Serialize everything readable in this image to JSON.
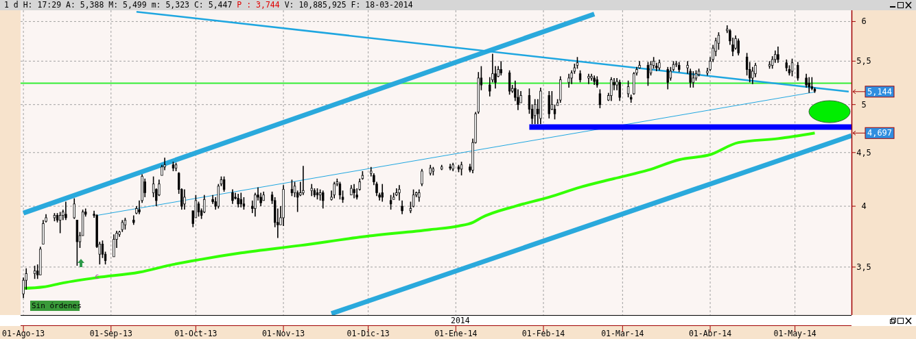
{
  "chart_data": {
    "type": "candlestick",
    "title": "1 d H: 17:29 A: 5,388 M: 5,499 m: 5,323 C: 5,447",
    "subtitle": "P : 3,744",
    "annotations": [
      "V: 10,885,925 F: 18-03-2014",
      "Sin órdenes",
      "2014",
      {
        "text": "5,144",
        "x": "2014-05-21",
        "y": 5.144
      },
      {
        "text": "4,697",
        "x": "2014-05-21",
        "y": 4.697
      },
      {
        "text": "c",
        "x": "2013-08-27",
        "y": 3.43
      }
    ],
    "x": [
      "2013-08-01",
      "2013-08-02",
      "2013-08-05",
      "2013-08-06",
      "2013-08-07",
      "2013-08-08",
      "2013-08-09",
      "2013-08-12",
      "2013-08-13",
      "2013-08-14",
      "2013-08-15",
      "2013-08-16",
      "2013-08-19",
      "2013-08-20",
      "2013-08-21",
      "2013-08-22",
      "2013-08-23",
      "2013-08-26",
      "2013-08-27",
      "2013-08-28",
      "2013-08-29",
      "2013-08-30",
      "2013-09-02",
      "2013-09-03",
      "2013-09-04",
      "2013-09-05",
      "2013-09-06",
      "2013-09-09",
      "2013-09-10",
      "2013-09-11",
      "2013-09-12",
      "2013-09-13",
      "2013-09-16",
      "2013-09-17",
      "2013-09-18",
      "2013-09-19",
      "2013-09-20",
      "2013-09-23",
      "2013-09-24",
      "2013-09-25",
      "2013-09-26",
      "2013-09-27",
      "2013-09-30",
      "2013-10-01",
      "2013-10-02",
      "2013-10-03",
      "2013-10-04",
      "2013-10-07",
      "2013-10-08",
      "2013-10-09",
      "2013-10-10",
      "2013-10-11",
      "2013-10-14",
      "2013-10-15",
      "2013-10-16",
      "2013-10-17",
      "2013-10-18",
      "2013-10-21",
      "2013-10-22",
      "2013-10-23",
      "2013-10-24",
      "2013-10-25",
      "2013-10-28",
      "2013-10-29",
      "2013-10-30",
      "2013-10-31",
      "2013-11-01",
      "2013-11-04",
      "2013-11-05",
      "2013-11-06",
      "2013-11-07",
      "2013-11-08",
      "2013-11-11",
      "2013-11-12",
      "2013-11-13",
      "2013-11-14",
      "2013-11-15",
      "2013-11-18",
      "2013-11-19",
      "2013-11-20",
      "2013-11-21",
      "2013-11-22",
      "2013-11-25",
      "2013-11-26",
      "2013-11-27",
      "2013-11-28",
      "2013-11-29",
      "2013-12-02",
      "2013-12-03",
      "2013-12-04",
      "2013-12-05",
      "2013-12-06",
      "2013-12-09",
      "2013-12-10",
      "2013-12-11",
      "2013-12-12",
      "2013-12-13",
      "2013-12-16",
      "2013-12-17",
      "2013-12-18",
      "2013-12-19",
      "2013-12-20",
      "2013-12-23",
      "2013-12-24",
      "2013-12-27",
      "2013-12-30",
      "2013-12-31",
      "2014-01-02",
      "2014-01-03",
      "2014-01-06",
      "2014-01-07",
      "2014-01-08",
      "2014-01-09",
      "2014-01-10",
      "2014-01-13",
      "2014-01-14",
      "2014-01-15",
      "2014-01-16",
      "2014-01-17",
      "2014-01-20",
      "2014-01-21",
      "2014-01-22",
      "2014-01-23",
      "2014-01-24",
      "2014-01-27",
      "2014-01-28",
      "2014-01-29",
      "2014-01-30",
      "2014-01-31",
      "2014-02-03",
      "2014-02-04",
      "2014-02-05",
      "2014-02-06",
      "2014-02-07",
      "2014-02-10",
      "2014-02-11",
      "2014-02-12",
      "2014-02-13",
      "2014-02-14",
      "2014-02-17",
      "2014-02-18",
      "2014-02-19",
      "2014-02-20",
      "2014-02-21",
      "2014-02-24",
      "2014-02-25",
      "2014-02-26",
      "2014-02-27",
      "2014-02-28",
      "2014-03-03",
      "2014-03-04",
      "2014-03-05",
      "2014-03-06",
      "2014-03-07",
      "2014-03-10",
      "2014-03-11",
      "2014-03-12",
      "2014-03-13",
      "2014-03-14",
      "2014-03-17",
      "2014-03-18",
      "2014-03-19",
      "2014-03-20",
      "2014-03-21",
      "2014-03-24",
      "2014-03-25",
      "2014-03-26",
      "2014-03-27",
      "2014-03-28",
      "2014-03-31",
      "2014-04-01",
      "2014-04-02",
      "2014-04-03",
      "2014-04-04",
      "2014-04-07",
      "2014-04-08",
      "2014-04-09",
      "2014-04-10",
      "2014-04-11",
      "2014-04-14",
      "2014-04-15",
      "2014-04-16",
      "2014-04-17",
      "2014-04-22",
      "2014-04-23",
      "2014-04-24",
      "2014-04-25",
      "2014-04-28",
      "2014-04-29",
      "2014-04-30",
      "2014-05-02",
      "2014-05-05",
      "2014-05-06",
      "2014-05-07",
      "2014-05-08"
    ],
    "ohlc": [
      [
        3.3,
        3.42,
        3.27,
        3.4
      ],
      [
        3.4,
        3.49,
        3.33,
        3.45
      ],
      [
        3.45,
        3.51,
        3.41,
        3.47
      ],
      [
        3.47,
        3.52,
        3.41,
        3.44
      ],
      [
        3.44,
        3.66,
        3.44,
        3.64
      ],
      [
        3.68,
        3.88,
        3.68,
        3.85
      ],
      [
        3.87,
        3.93,
        3.86,
        3.9
      ],
      [
        3.9,
        3.94,
        3.87,
        3.92
      ],
      [
        3.92,
        3.94,
        3.86,
        3.88
      ],
      [
        3.88,
        3.95,
        3.77,
        3.92
      ],
      [
        3.92,
        3.97,
        3.88,
        3.95
      ],
      [
        3.93,
        4.04,
        3.88,
        3.9
      ],
      [
        3.9,
        4.07,
        3.89,
        4.02
      ],
      [
        3.88,
        3.88,
        3.51,
        3.7
      ],
      [
        3.7,
        3.78,
        3.65,
        3.75
      ],
      [
        3.75,
        3.97,
        3.75,
        3.95
      ],
      [
        3.95,
        3.98,
        3.91,
        3.93
      ],
      [
        3.93,
        3.96,
        3.9,
        3.92
      ],
      [
        3.92,
        3.93,
        3.65,
        3.66
      ],
      [
        3.6,
        3.7,
        3.52,
        3.68
      ],
      [
        3.68,
        3.71,
        3.57,
        3.6
      ],
      [
        3.6,
        3.62,
        3.52,
        3.55
      ],
      [
        3.58,
        3.76,
        3.58,
        3.72
      ],
      [
        3.72,
        3.79,
        3.65,
        3.77
      ],
      [
        3.76,
        3.79,
        3.74,
        3.78
      ],
      [
        3.8,
        3.88,
        3.78,
        3.86
      ],
      [
        3.84,
        3.9,
        3.8,
        3.88
      ],
      [
        3.88,
        3.92,
        3.84,
        3.86
      ],
      [
        3.94,
        4.0,
        3.93,
        3.98
      ],
      [
        3.97,
        4.05,
        3.93,
        3.95
      ],
      [
        4.05,
        4.29,
        4.03,
        4.27
      ],
      [
        4.22,
        4.25,
        4.08,
        4.12
      ],
      [
        4.12,
        4.27,
        4.08,
        4.2
      ],
      [
        4.15,
        4.16,
        4.0,
        4.05
      ],
      [
        4.1,
        4.24,
        4.09,
        4.2
      ],
      [
        4.28,
        4.38,
        4.28,
        4.36
      ],
      [
        4.36,
        4.45,
        4.33,
        4.38
      ],
      [
        4.38,
        4.41,
        4.32,
        4.35
      ],
      [
        4.35,
        4.4,
        4.32,
        4.38
      ],
      [
        4.3,
        4.31,
        4.11,
        4.15
      ],
      [
        4.15,
        4.16,
        3.97,
        4.0
      ],
      [
        4.02,
        4.15,
        3.97,
        4.08
      ],
      [
        3.96,
        3.96,
        3.82,
        3.85
      ],
      [
        3.9,
        4.1,
        3.9,
        4.05
      ],
      [
        4.02,
        4.04,
        3.91,
        3.95
      ],
      [
        3.96,
        3.98,
        3.89,
        3.92
      ],
      [
        3.95,
        4.1,
        3.94,
        4.06
      ],
      [
        4.06,
        4.1,
        4.02,
        4.04
      ],
      [
        4.04,
        4.08,
        3.97,
        4.0
      ],
      [
        4.0,
        4.2,
        3.98,
        4.18
      ],
      [
        4.2,
        4.27,
        4.18,
        4.24
      ],
      [
        4.24,
        4.27,
        4.13,
        4.15
      ],
      [
        4.12,
        4.15,
        4.02,
        4.05
      ],
      [
        4.08,
        4.12,
        4.06,
        4.07
      ],
      [
        4.07,
        4.11,
        3.99,
        4.02
      ],
      [
        4.06,
        4.12,
        3.99,
        4.02
      ],
      [
        4.02,
        4.08,
        3.97,
        4.0
      ],
      [
        4.0,
        4.05,
        3.94,
        3.98
      ],
      [
        3.98,
        4.12,
        3.91,
        4.1
      ],
      [
        4.1,
        4.17,
        4.05,
        4.08
      ],
      [
        4.08,
        4.12,
        4.0,
        4.03
      ],
      [
        4.05,
        4.13,
        4.05,
        4.1
      ],
      [
        4.1,
        4.13,
        4.02,
        4.05
      ],
      [
        4.05,
        4.08,
        3.82,
        3.86
      ],
      [
        3.86,
        3.98,
        3.73,
        3.84
      ],
      [
        3.84,
        4.0,
        3.84,
        3.9
      ],
      [
        3.9,
        4.19,
        3.83,
        4.15
      ],
      [
        4.15,
        4.24,
        4.09,
        4.12
      ],
      [
        4.12,
        4.22,
        4.08,
        4.18
      ],
      [
        4.12,
        4.14,
        3.95,
        4.08
      ],
      [
        4.1,
        4.22,
        4.09,
        4.12
      ],
      [
        4.12,
        4.37,
        4.1,
        4.14
      ],
      [
        4.14,
        4.2,
        4.09,
        4.16
      ],
      [
        4.14,
        4.16,
        4.08,
        4.1
      ],
      [
        4.12,
        4.16,
        4.06,
        4.1
      ],
      [
        4.1,
        4.15,
        4.05,
        4.12
      ],
      [
        4.12,
        4.14,
        3.98,
        4.05
      ],
      [
        4.06,
        4.14,
        4.05,
        4.08
      ],
      [
        4.1,
        4.22,
        4.07,
        4.2
      ],
      [
        4.2,
        4.25,
        4.18,
        4.22
      ],
      [
        4.2,
        4.22,
        4.06,
        4.1
      ],
      [
        4.08,
        4.14,
        4.03,
        4.06
      ],
      [
        4.1,
        4.19,
        4.1,
        4.16
      ],
      [
        4.15,
        4.2,
        4.07,
        4.12
      ],
      [
        4.1,
        4.16,
        4.06,
        4.08
      ],
      [
        4.15,
        4.25,
        4.14,
        4.22
      ],
      [
        4.25,
        4.32,
        4.24,
        4.28
      ],
      [
        4.3,
        4.36,
        4.27,
        4.32
      ],
      [
        4.28,
        4.3,
        4.19,
        4.22
      ],
      [
        4.2,
        4.22,
        4.09,
        4.12
      ],
      [
        4.1,
        4.12,
        4.05,
        4.08
      ],
      [
        4.12,
        4.2,
        4.04,
        4.08
      ],
      [
        4.05,
        4.1,
        3.97,
        4.02
      ],
      [
        4.06,
        4.12,
        4.06,
        4.08
      ],
      [
        4.1,
        4.16,
        4.09,
        4.12
      ],
      [
        4.12,
        4.19,
        4.05,
        4.15
      ],
      [
        4.0,
        4.05,
        3.93,
        3.96
      ],
      [
        3.96,
        4.04,
        3.94,
        3.98
      ],
      [
        4.0,
        4.15,
        3.99,
        4.1
      ],
      [
        4.1,
        4.13,
        4.08,
        4.12
      ],
      [
        4.08,
        4.15,
        4.04,
        4.12
      ],
      [
        4.2,
        4.34,
        4.18,
        4.32
      ],
      [
        4.3,
        4.38,
        4.28,
        4.35
      ],
      [
        4.32,
        4.36,
        4.28,
        4.34
      ],
      [
        4.34,
        4.38,
        4.33,
        4.36
      ],
      [
        4.36,
        4.39,
        4.33,
        4.35
      ],
      [
        4.34,
        4.4,
        4.32,
        4.38
      ],
      [
        4.36,
        4.38,
        4.31,
        4.34
      ],
      [
        4.34,
        4.41,
        4.28,
        4.38
      ],
      [
        4.36,
        4.39,
        4.31,
        4.33
      ],
      [
        4.33,
        4.64,
        4.3,
        4.6
      ],
      [
        4.6,
        4.92,
        4.59,
        4.9
      ],
      [
        4.92,
        5.37,
        4.9,
        5.3
      ],
      [
        5.3,
        5.44,
        5.16,
        5.22
      ],
      [
        5.22,
        5.31,
        5.09,
        5.15
      ],
      [
        5.28,
        5.59,
        5.25,
        5.35
      ],
      [
        5.35,
        5.44,
        5.18,
        5.25
      ],
      [
        5.32,
        5.44,
        5.31,
        5.4
      ],
      [
        5.4,
        5.5,
        5.33,
        5.36
      ],
      [
        5.36,
        5.39,
        5.11,
        5.15
      ],
      [
        5.15,
        5.22,
        5.13,
        5.18
      ],
      [
        5.18,
        5.27,
        5.04,
        5.08
      ],
      [
        5.08,
        5.17,
        4.94,
        5.0
      ],
      [
        5.02,
        5.15,
        5.02,
        5.1
      ],
      [
        5.1,
        5.18,
        4.9,
        4.95
      ],
      [
        4.95,
        5.0,
        4.79,
        4.85
      ],
      [
        4.88,
        5.06,
        4.79,
        5.0
      ],
      [
        4.95,
        5.06,
        4.79,
        4.9
      ],
      [
        4.85,
        5.19,
        4.79,
        5.15
      ],
      [
        5.1,
        5.15,
        4.85,
        4.9
      ],
      [
        4.95,
        5.15,
        4.94,
        5.0
      ],
      [
        4.95,
        5.0,
        4.84,
        4.9
      ],
      [
        4.99,
        5.06,
        4.99,
        5.02
      ],
      [
        5.05,
        5.32,
        5.02,
        5.28
      ],
      [
        5.25,
        5.35,
        5.19,
        5.3
      ],
      [
        5.3,
        5.39,
        5.23,
        5.36
      ],
      [
        5.38,
        5.47,
        5.35,
        5.42
      ],
      [
        5.45,
        5.55,
        5.41,
        5.48
      ],
      [
        5.35,
        5.39,
        5.25,
        5.28
      ],
      [
        5.3,
        5.35,
        5.23,
        5.32
      ],
      [
        5.3,
        5.35,
        5.27,
        5.32
      ],
      [
        5.3,
        5.33,
        5.22,
        5.26
      ],
      [
        5.28,
        5.32,
        5.19,
        5.22
      ],
      [
        5.12,
        5.17,
        4.96,
        5.0
      ],
      [
        5.05,
        5.13,
        5.04,
        5.1
      ],
      [
        5.1,
        5.31,
        5.04,
        5.28
      ],
      [
        5.25,
        5.3,
        5.16,
        5.22
      ],
      [
        5.22,
        5.3,
        5.16,
        5.26
      ],
      [
        5.25,
        5.28,
        5.04,
        5.08
      ],
      [
        5.12,
        5.27,
        5.08,
        5.2
      ],
      [
        5.08,
        5.11,
        5.02,
        5.06
      ],
      [
        5.12,
        5.37,
        5.11,
        5.35
      ],
      [
        5.36,
        5.43,
        5.33,
        5.4
      ],
      [
        5.42,
        5.5,
        5.41,
        5.45
      ],
      [
        5.45,
        5.49,
        5.21,
        5.3
      ],
      [
        5.36,
        5.5,
        5.33,
        5.46
      ],
      [
        5.45,
        5.55,
        5.41,
        5.5
      ],
      [
        5.44,
        5.48,
        5.38,
        5.42
      ],
      [
        5.42,
        5.52,
        5.39,
        5.48
      ],
      [
        5.4,
        5.43,
        5.17,
        5.25
      ],
      [
        5.3,
        5.43,
        5.27,
        5.38
      ],
      [
        5.4,
        5.5,
        5.38,
        5.46
      ],
      [
        5.46,
        5.5,
        5.43,
        5.47
      ],
      [
        5.45,
        5.49,
        5.37,
        5.4
      ],
      [
        5.42,
        5.5,
        5.35,
        5.45
      ],
      [
        5.38,
        5.41,
        5.19,
        5.25
      ],
      [
        5.25,
        5.38,
        5.19,
        5.3
      ],
      [
        5.3,
        5.39,
        5.27,
        5.35
      ],
      [
        5.34,
        5.41,
        5.32,
        5.38
      ],
      [
        5.36,
        5.42,
        5.33,
        5.38
      ],
      [
        5.4,
        5.55,
        5.38,
        5.5
      ],
      [
        5.52,
        5.7,
        5.49,
        5.66
      ],
      [
        5.62,
        5.79,
        5.56,
        5.75
      ],
      [
        5.72,
        5.86,
        5.64,
        5.82
      ],
      [
        5.88,
        5.95,
        5.85,
        5.9
      ],
      [
        5.88,
        5.9,
        5.7,
        5.75
      ],
      [
        5.7,
        5.79,
        5.56,
        5.62
      ],
      [
        5.66,
        5.82,
        5.64,
        5.78
      ],
      [
        5.75,
        5.78,
        5.57,
        5.6
      ],
      [
        5.55,
        5.6,
        5.33,
        5.4
      ],
      [
        5.4,
        5.49,
        5.25,
        5.3
      ],
      [
        5.3,
        5.43,
        5.23,
        5.38
      ],
      [
        5.35,
        5.48,
        5.31,
        5.45
      ],
      [
        5.44,
        5.5,
        5.41,
        5.46
      ],
      [
        5.45,
        5.56,
        5.41,
        5.52
      ],
      [
        5.52,
        5.63,
        5.48,
        5.58
      ],
      [
        5.58,
        5.68,
        5.48,
        5.52
      ],
      [
        5.48,
        5.52,
        5.38,
        5.42
      ],
      [
        5.4,
        5.45,
        5.33,
        5.36
      ],
      [
        5.38,
        5.53,
        5.32,
        5.48
      ],
      [
        5.45,
        5.49,
        5.27,
        5.3
      ],
      [
        5.3,
        5.35,
        5.19,
        5.22
      ],
      [
        5.24,
        5.31,
        5.13,
        5.2
      ],
      [
        5.2,
        5.31,
        5.16,
        5.18
      ],
      [
        5.17,
        5.19,
        5.13,
        5.15
      ]
    ],
    "series": [
      {
        "type": "line",
        "color": "#2aa9dc",
        "x": [
          "2013-08-01",
          "2014-02-19"
        ],
        "values": [
          3.94,
          6.1
        ]
      },
      {
        "type": "line",
        "color": "#2aa9dc",
        "x": [
          "2013-11-18",
          "2014-05-21"
        ],
        "values": [
          3.16,
          4.67
        ]
      },
      {
        "type": "line",
        "color": "#1ea6e0",
        "x": [
          "2013-09-10",
          "2014-05-20"
        ],
        "values": [
          6.13,
          5.144
        ]
      },
      {
        "type": "line",
        "color": "#1ea6e0",
        "x": [
          "2013-08-27",
          "2014-05-08"
        ],
        "values": [
          3.92,
          5.14
        ]
      },
      {
        "type": "line",
        "color": "#0000ff",
        "x": [
          "2014-01-27",
          "2014-05-21"
        ],
        "values": [
          4.76,
          4.76
        ]
      },
      {
        "type": "line",
        "color": "#33ff00",
        "x": [
          "2013-08-01",
          "2013-08-08",
          "2013-08-15",
          "2013-08-27",
          "2013-09-11",
          "2013-09-23",
          "2013-10-03",
          "2013-10-17",
          "2013-11-07",
          "2013-11-29",
          "2013-12-23",
          "2014-01-02",
          "2014-01-07",
          "2014-01-10",
          "2014-01-22",
          "2014-02-03",
          "2014-02-14",
          "2014-02-26",
          "2014-03-10",
          "2014-03-21",
          "2014-04-01",
          "2014-04-11",
          "2014-04-25",
          "2014-05-08"
        ],
        "values": [
          3.34,
          3.35,
          3.38,
          3.42,
          3.46,
          3.52,
          3.56,
          3.61,
          3.67,
          3.74,
          3.8,
          3.83,
          3.86,
          3.9,
          4.0,
          4.08,
          4.17,
          4.25,
          4.33,
          4.43,
          4.48,
          4.6,
          4.64,
          4.697
        ]
      }
    ],
    "ref_lines": [
      {
        "axis": "y",
        "value": 5.24,
        "color": "#33ee33"
      }
    ],
    "xlim": [
      "2013-07-31",
      "2014-05-21"
    ],
    "xticks": [
      {
        "value": "2013-08-01",
        "label": "01-Ago-13"
      },
      {
        "value": "2013-09-01",
        "label": "01-Sep-13"
      },
      {
        "value": "2013-10-01",
        "label": "01-Oct-13"
      },
      {
        "value": "2013-11-01",
        "label": "01-Nov-13"
      },
      {
        "value": "2013-12-01",
        "label": "01-Dic-13"
      },
      {
        "value": "2014-01-01",
        "label": "01-Ene-14"
      },
      {
        "value": "2014-02-01",
        "label": "01-Feb-14"
      },
      {
        "value": "2014-03-01",
        "label": "01-Mar-14"
      },
      {
        "value": "2014-04-01",
        "label": "01-Abr-14"
      },
      {
        "value": "2014-05-01",
        "label": "01-May-14"
      }
    ],
    "ylim": [
      3.15,
      6.15
    ],
    "yticks": [
      {
        "value": 3.5,
        "label": "3,5"
      },
      4,
      {
        "value": 4.5,
        "label": "4,5"
      },
      5,
      {
        "value": 5.5,
        "label": "5,5"
      },
      6
    ],
    "log": true,
    "grid": true
  }
}
